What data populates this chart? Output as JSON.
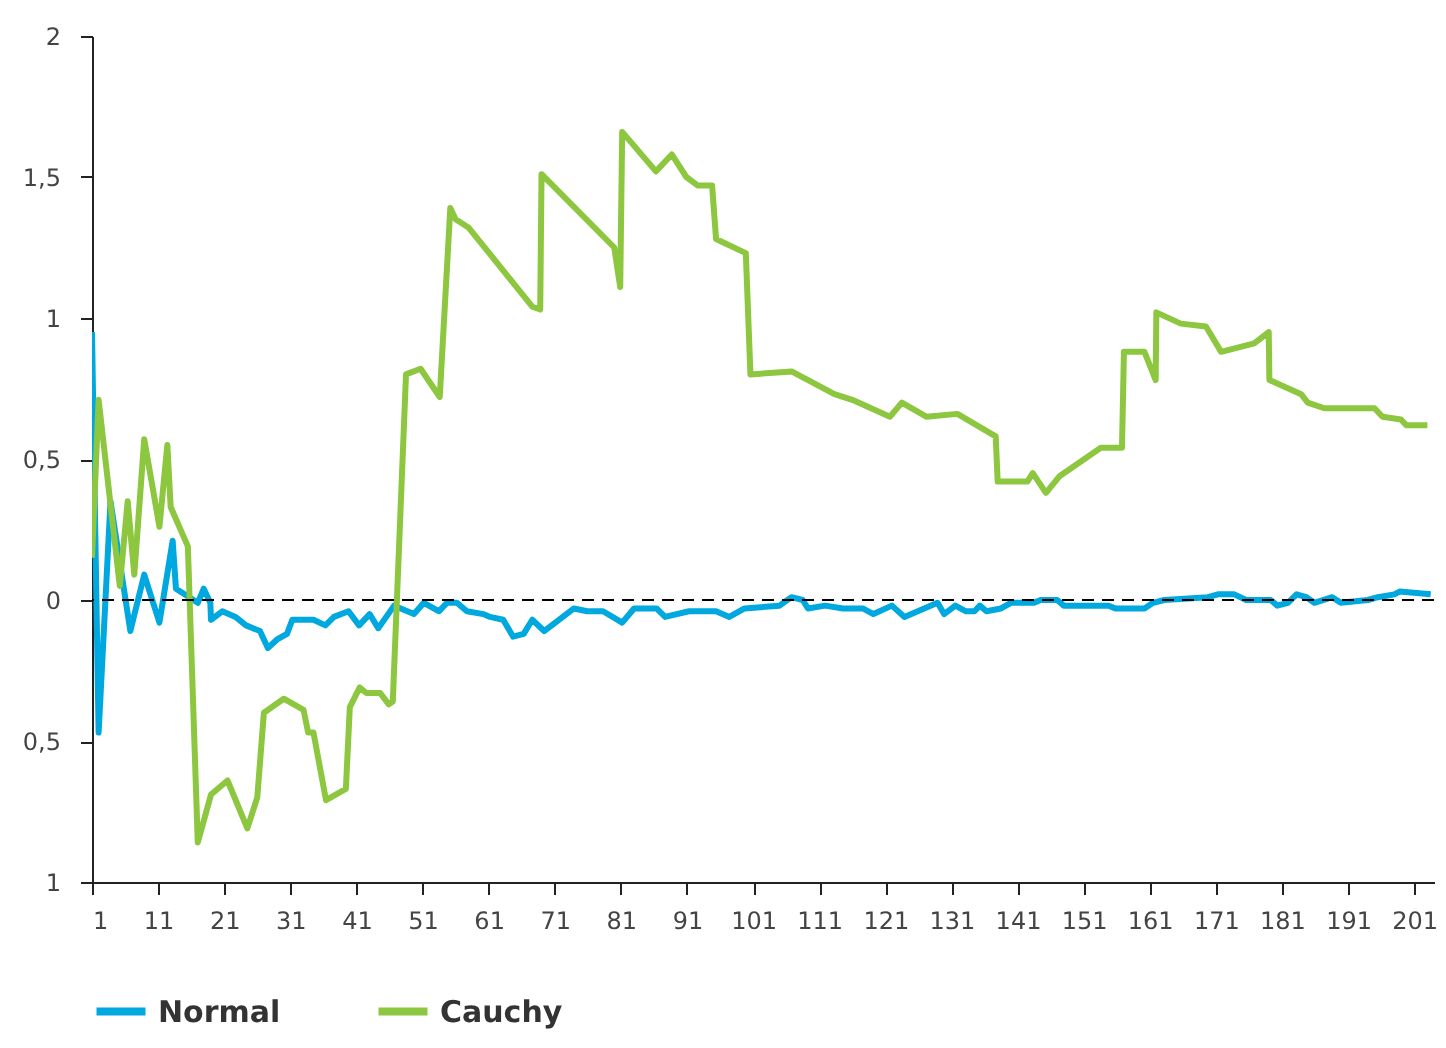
{
  "chart_data": {
    "type": "line",
    "xlim": [
      1,
      204
    ],
    "xticks": [
      1,
      11,
      21,
      31,
      41,
      51,
      61,
      71,
      81,
      91,
      101,
      111,
      121,
      131,
      141,
      151,
      161,
      171,
      181,
      191,
      201
    ],
    "ylim": [
      -1,
      2
    ],
    "yticks": [
      {
        "value": 2,
        "label": "2"
      },
      {
        "value": 1.5,
        "label": "1,5"
      },
      {
        "value": 1,
        "label": "1"
      },
      {
        "value": 0.5,
        "label": "0,5"
      },
      {
        "value": 0,
        "label": "0"
      },
      {
        "value": -0.5,
        "label": "0,5"
      },
      {
        "value": -1,
        "label": "1"
      }
    ],
    "grid": false,
    "legend": "bottom",
    "line_style": "solid",
    "marker": "none",
    "ref_lines": [
      {
        "axis": "y",
        "value": 0,
        "color": "#000000",
        "line_style": "dashed"
      }
    ],
    "series": [
      {
        "name": "Normal",
        "color": "#00a8e0",
        "x": [
          1,
          2,
          3.8,
          6.8,
          8.9,
          11.2,
          13.2,
          13.7,
          17,
          17.9,
          18.9,
          19,
          20.7,
          22.7,
          24.3,
          26.4,
          27.6,
          29,
          30.5,
          31.3,
          34.5,
          36.3,
          37.6,
          39.8,
          41.4,
          43,
          44.3,
          46.7,
          49.7,
          51.2,
          53.5,
          54.7,
          56.2,
          57.7,
          60.2,
          61.2,
          63.2,
          64.7,
          66.3,
          67.6,
          69.4,
          73.9,
          75.9,
          78.3,
          81.2,
          83,
          86.4,
          87.7,
          91.3,
          95.4,
          97.4,
          99.7,
          105,
          106.8,
          108.5,
          109.3,
          111.9,
          114.6,
          117.6,
          119.2,
          122,
          123.9,
          128.9,
          129.9,
          131.6,
          133.2,
          134.5,
          135.3,
          136.3,
          138.5,
          140,
          143.5,
          144.5,
          147,
          148,
          154.8,
          155.8,
          160.2,
          161.5,
          163.2,
          169.8,
          171.3,
          173.8,
          175.6,
          179.3,
          180.3,
          181.9,
          183.2,
          184.7,
          185.9,
          188.6,
          189.9,
          194,
          195.5,
          198,
          198.8,
          203.5
        ],
        "values": [
          0.95,
          -0.47,
          0.35,
          -0.11,
          0.09,
          -0.08,
          0.21,
          0.04,
          -0.01,
          0.04,
          -0.01,
          -0.07,
          -0.04,
          -0.06,
          -0.09,
          -0.11,
          -0.17,
          -0.14,
          -0.12,
          -0.07,
          -0.07,
          -0.09,
          -0.06,
          -0.04,
          -0.09,
          -0.05,
          -0.1,
          -0.02,
          -0.05,
          -0.01,
          -0.04,
          -0.01,
          -0.01,
          -0.04,
          -0.05,
          -0.06,
          -0.07,
          -0.13,
          -0.12,
          -0.07,
          -0.11,
          -0.03,
          -0.04,
          -0.04,
          -0.08,
          -0.03,
          -0.03,
          -0.06,
          -0.04,
          -0.04,
          -0.06,
          -0.03,
          -0.02,
          0.01,
          0,
          -0.03,
          -0.02,
          -0.03,
          -0.03,
          -0.05,
          -0.02,
          -0.06,
          -0.01,
          -0.05,
          -0.02,
          -0.04,
          -0.04,
          -0.02,
          -0.04,
          -0.03,
          -0.01,
          -0.01,
          0,
          0,
          -0.02,
          -0.02,
          -0.03,
          -0.03,
          -0.01,
          0,
          0.01,
          0.02,
          0.02,
          0,
          0,
          -0.02,
          -0.01,
          0.02,
          0.01,
          -0.01,
          0.01,
          -0.01,
          0,
          0.01,
          0.02,
          0.03,
          0.02
        ]
      },
      {
        "name": "Cauchy",
        "color": "#8dc63f",
        "x": [
          1,
          2,
          5.2,
          6.4,
          7.4,
          8.9,
          11.2,
          12.4,
          12.9,
          15.5,
          17,
          19,
          21.5,
          24.5,
          26,
          27,
          30,
          33,
          33.7,
          34.5,
          36.4,
          39.4,
          40,
          41.5,
          42.5,
          44.6,
          45.9,
          46.5,
          48.5,
          50.7,
          53.6,
          55.2,
          56,
          58,
          67.6,
          68.8,
          69,
          80,
          80.9,
          81.2,
          86.3,
          88.7,
          90.9,
          92.6,
          94.8,
          95.4,
          99.9,
          100.6,
          106.9,
          113.3,
          116,
          121.7,
          123.5,
          127.2,
          131.9,
          137.7,
          138,
          142.5,
          143.3,
          145.3,
          147.4,
          153.6,
          156.8,
          157.1,
          160.2,
          161.9,
          162,
          165.7,
          169.5,
          171.8,
          176.8,
          179,
          179.1,
          183.9,
          184.9,
          187.4,
          195,
          196.2,
          199,
          199.8,
          203
        ],
        "values": [
          0.15,
          0.71,
          0.05,
          0.35,
          0.09,
          0.57,
          0.26,
          0.55,
          0.33,
          0.19,
          -0.86,
          -0.69,
          -0.64,
          -0.81,
          -0.7,
          -0.4,
          -0.35,
          -0.39,
          -0.47,
          -0.47,
          -0.71,
          -0.67,
          -0.38,
          -0.31,
          -0.33,
          -0.33,
          -0.37,
          -0.36,
          0.8,
          0.82,
          0.72,
          1.39,
          1.35,
          1.32,
          1.04,
          1.03,
          1.51,
          1.25,
          1.11,
          1.66,
          1.52,
          1.58,
          1.5,
          1.47,
          1.47,
          1.28,
          1.23,
          0.8,
          0.81,
          0.73,
          0.71,
          0.65,
          0.7,
          0.65,
          0.66,
          0.58,
          0.42,
          0.42,
          0.45,
          0.38,
          0.44,
          0.54,
          0.54,
          0.88,
          0.88,
          0.78,
          1.02,
          0.98,
          0.97,
          0.88,
          0.91,
          0.95,
          0.78,
          0.73,
          0.7,
          0.68,
          0.68,
          0.65,
          0.64,
          0.62,
          0.62
        ]
      }
    ]
  }
}
